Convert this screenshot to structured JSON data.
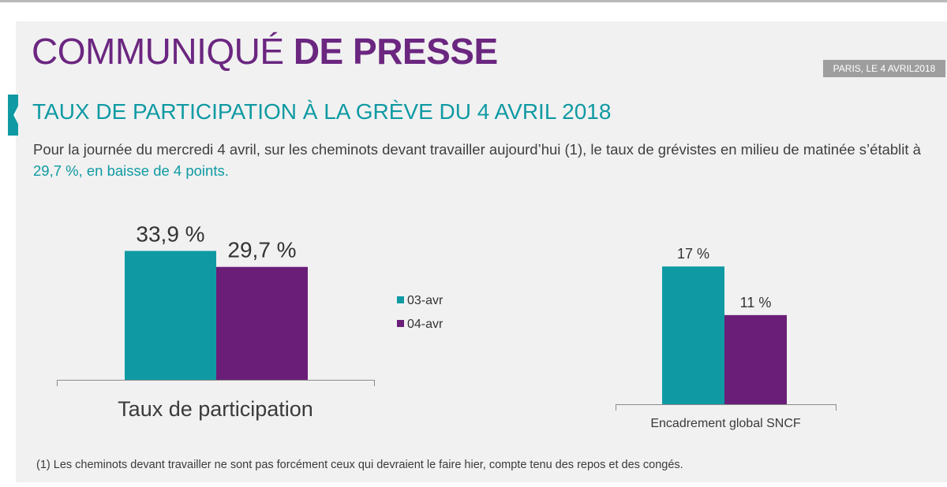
{
  "header": {
    "title_light": "COMMUNIQUÉ",
    "title_bold": "DE PRESSE",
    "dateline": "PARIS, LE 4 AVRIL2018"
  },
  "section": {
    "subtitle": "TAUX DE PARTICIPATION À LA GRÈVE DU 4 AVRIL 2018"
  },
  "intro": {
    "part1": "Pour la journée du mercredi 4 avril, sur les cheminots devant travailler aujourd’hui (1), le taux de grévistes en milieu de matinée s’établit à ",
    "highlight": "29,7 %, en baisse de 4 points."
  },
  "footnote": "(1)  Les cheminots devant travailler ne sont pas forcément ceux qui devraient le faire hier, compte tenu des repos et des congés.",
  "colors": {
    "purple": "#6b2680",
    "teal": "#0f9aa3",
    "series_03": "#0f9aa3",
    "series_04": "#6a1e78"
  },
  "chart_data": [
    {
      "type": "bar",
      "categories": [
        "Taux de participation"
      ],
      "series": [
        {
          "name": "03-avr",
          "values": [
            33.9
          ],
          "labels": [
            "33,9 %"
          ]
        },
        {
          "name": "04-avr",
          "values": [
            29.7
          ],
          "labels": [
            "29,7 %"
          ]
        }
      ],
      "ylim": [
        0,
        40
      ],
      "legend": {
        "placement": "right",
        "entries": [
          "03-avr",
          "04-avr"
        ]
      },
      "grid": false
    },
    {
      "type": "bar",
      "categories": [
        "Encadrement global SNCF"
      ],
      "series": [
        {
          "name": "03-avr",
          "values": [
            17
          ],
          "labels": [
            "17 %"
          ]
        },
        {
          "name": "04-avr",
          "values": [
            11
          ],
          "labels": [
            "11 %"
          ]
        }
      ],
      "ylim": [
        0,
        21
      ],
      "grid": false
    }
  ]
}
